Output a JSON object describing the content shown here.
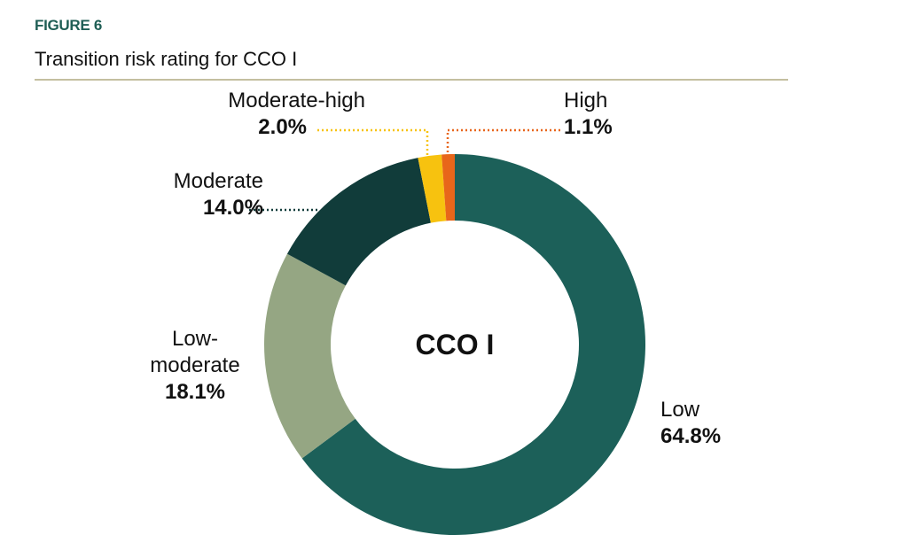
{
  "figure_label": "FIGURE 6",
  "title": "Transition risk rating for CCO I",
  "chart_data": {
    "type": "pie",
    "variant": "donut",
    "center_label": "CCO I",
    "categories": [
      "Low",
      "Low-moderate",
      "Moderate",
      "Moderate-high",
      "High"
    ],
    "values": [
      64.8,
      18.1,
      14.0,
      2.0,
      1.1
    ],
    "value_labels": [
      "64.8%",
      "18.1%",
      "14.0%",
      "2.0%",
      "1.1%"
    ],
    "label_lines": [
      "Low",
      "Low-\nmoderate",
      "Moderate",
      "Moderate-high",
      "High"
    ],
    "colors": [
      "#1c6059",
      "#95a683",
      "#113c3a",
      "#f7c20f",
      "#e8661a"
    ],
    "unit": "%"
  }
}
